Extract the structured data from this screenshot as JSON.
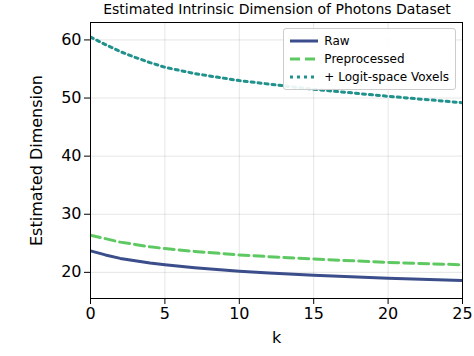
{
  "chart_data": {
    "type": "line",
    "title": "Estimated Intrinsic Dimension of Photons Dataset",
    "x_label": "k",
    "y_label": "Estimated Dimension",
    "x": [
      0,
      1,
      2,
      3,
      4,
      5,
      7,
      10,
      12,
      15,
      20,
      25
    ],
    "series": [
      {
        "name": "Raw",
        "color": "#3b4d8a",
        "line_style": "solid",
        "values": [
          23.7,
          23.0,
          22.4,
          22.0,
          21.6,
          21.3,
          20.8,
          20.2,
          19.9,
          19.5,
          19.0,
          18.6
        ]
      },
      {
        "name": "Preprocessed",
        "color": "#5ec962",
        "line_style": "dashed",
        "values": [
          26.4,
          25.8,
          25.2,
          24.8,
          24.4,
          24.1,
          23.6,
          23.0,
          22.7,
          22.3,
          21.7,
          21.3
        ]
      },
      {
        "name": "+ Logit-space Voxels",
        "color": "#21918c",
        "line_style": "dotted",
        "values": [
          60.5,
          59.2,
          58.0,
          57.0,
          56.1,
          55.3,
          54.2,
          53.0,
          52.4,
          51.5,
          50.3,
          49.2
        ]
      }
    ],
    "xlim": [
      0,
      25
    ],
    "xticks": [
      0,
      5,
      10,
      15,
      20,
      25
    ],
    "ylim": [
      15.5,
      63
    ],
    "yticks": [
      20,
      30,
      40,
      50,
      60
    ],
    "grid": true,
    "legend": "upper right"
  }
}
